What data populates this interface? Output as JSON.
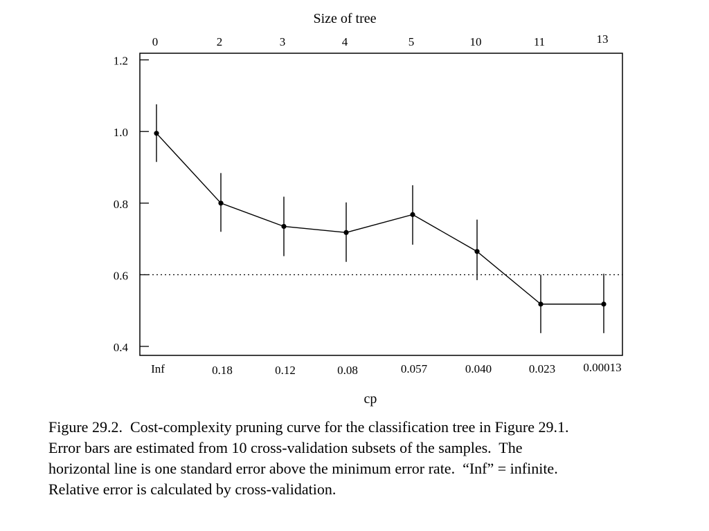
{
  "chart_data": {
    "type": "line",
    "top_axis_label": "Size of tree",
    "xlabel": "cp",
    "ylabel": "",
    "top_tick_labels": [
      "0",
      "2",
      "3",
      "4",
      "5",
      "10",
      "11",
      "13"
    ],
    "categories": [
      "Inf",
      "0.18",
      "0.12",
      "0.08",
      "0.057",
      "0.040",
      "0.023",
      "0.00013"
    ],
    "y_ticks": [
      "0.4",
      "0.6",
      "0.8",
      "1.0",
      "1.2"
    ],
    "ylim": [
      0.38,
      1.24
    ],
    "series": [
      {
        "values": [
          0.995,
          0.8,
          0.735,
          0.718,
          0.768,
          0.665,
          0.518,
          0.518
        ],
        "error_low": [
          0.915,
          0.72,
          0.652,
          0.636,
          0.684,
          0.585,
          0.437,
          0.437
        ],
        "error_high": [
          1.076,
          0.884,
          0.818,
          0.802,
          0.85,
          0.754,
          0.6,
          0.603
        ]
      }
    ],
    "reference_line": {
      "y": 0.6,
      "style": "dotted"
    },
    "grid": false
  },
  "caption": {
    "lines": [
      "Figure 29.2.  Cost-complexity pruning curve for the classification tree in Figure 29.1.",
      "Error bars are estimated from 10 cross-validation subsets of the samples.  The",
      "horizontal line is one standard error above the minimum error rate.  “Inf” = infinite.",
      "Relative error is calculated by cross-validation."
    ]
  }
}
